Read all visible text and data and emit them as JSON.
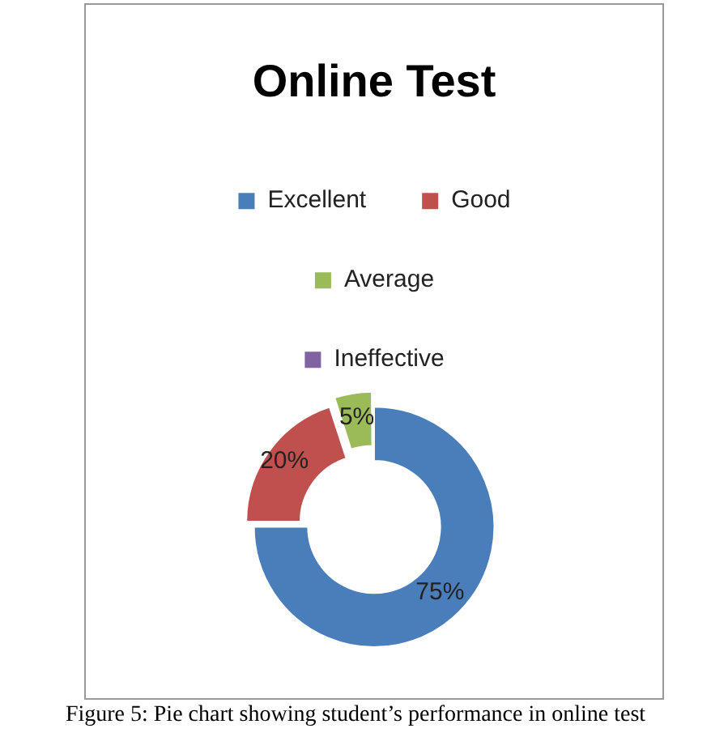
{
  "chart_data": {
    "type": "donut",
    "title": "Online Test",
    "categories": [
      "Excellent",
      "Good",
      "Average",
      "Ineffective"
    ],
    "values": [
      75,
      20,
      5,
      0
    ],
    "colors": [
      "#4a7ebb",
      "#c0504d",
      "#9bbb59",
      "#8064a2"
    ],
    "value_labels": [
      "75%",
      "20%",
      "5%",
      null
    ],
    "legend": "top",
    "annotations": [
      "Figure 5: Pie chart showing student’s performance in online test"
    ]
  }
}
